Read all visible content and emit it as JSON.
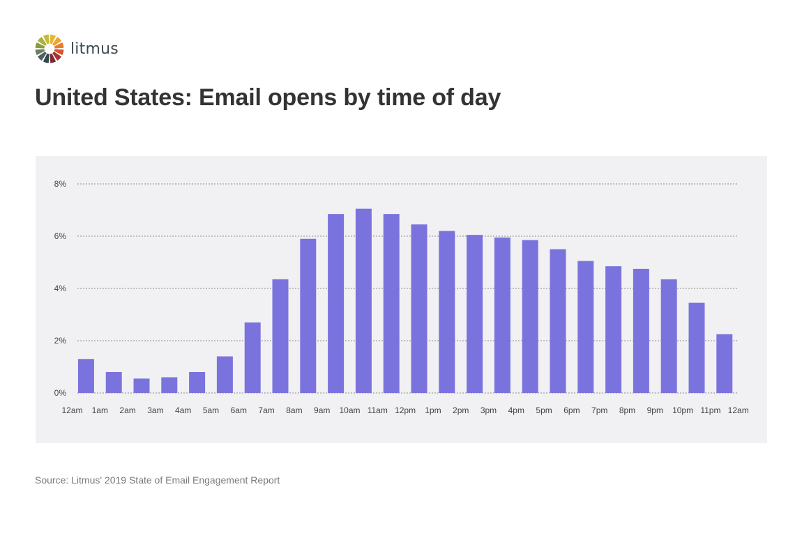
{
  "brand": {
    "name": "litmus",
    "colors": [
      "#e6b832",
      "#f0a430",
      "#ea7a30",
      "#d8532f",
      "#a8322c",
      "#7e2a2e",
      "#36454f",
      "#506064",
      "#6f7f5f",
      "#8b9a42",
      "#a8b23c",
      "#c9b83a"
    ]
  },
  "title": "United States: Email opens by time of day",
  "source": "Source: Litmus' 2019 State of Email Engagement Report",
  "colors": {
    "bar": "#7b73dd",
    "panel": "#f1f1f3",
    "grid": "#8a8a8a",
    "title": "#333333"
  },
  "chart_data": {
    "type": "bar",
    "title": "United States: Email opens by time of day",
    "xlabel": "",
    "ylabel": "",
    "ylim": [
      0,
      8
    ],
    "yticks": [
      0,
      2,
      4,
      6,
      8
    ],
    "ytick_labels": [
      "0%",
      "2%",
      "4%",
      "6%",
      "8%"
    ],
    "grid": true,
    "x_tick_labels": [
      "12am",
      "1am",
      "2am",
      "3am",
      "4am",
      "5am",
      "6am",
      "7am",
      "8am",
      "9am",
      "10am",
      "11am",
      "12pm",
      "1pm",
      "2pm",
      "3pm",
      "4pm",
      "5pm",
      "6pm",
      "7pm",
      "8pm",
      "9pm",
      "10pm",
      "11pm",
      "12am"
    ],
    "values": [
      1.3,
      0.8,
      0.55,
      0.6,
      0.8,
      1.4,
      2.7,
      4.35,
      5.9,
      6.85,
      7.05,
      6.85,
      6.45,
      6.2,
      6.05,
      5.95,
      5.85,
      5.5,
      5.05,
      4.85,
      4.75,
      4.35,
      3.45,
      2.25
    ]
  }
}
